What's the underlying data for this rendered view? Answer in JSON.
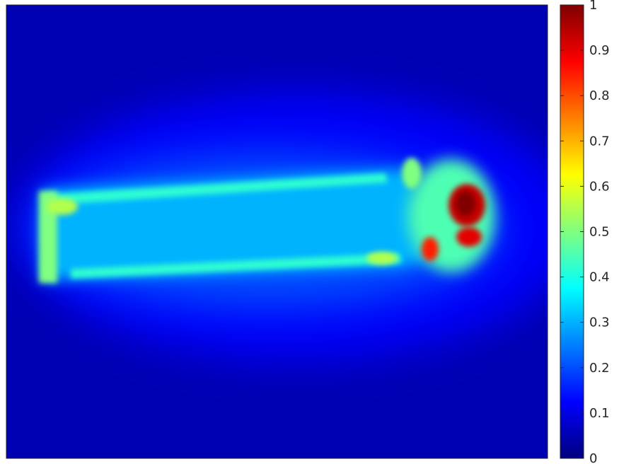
{
  "chart_data": {
    "type": "heatmap",
    "colormap": "jet",
    "colorbar": {
      "range": [
        0,
        1
      ],
      "ticks": [
        0,
        0.1,
        0.2,
        0.3,
        0.4,
        0.5,
        0.6,
        0.7,
        0.8,
        0.9,
        1
      ],
      "tick_labels": [
        "0",
        "0.1",
        "0.2",
        "0.3",
        "0.4",
        "0.5",
        "0.6",
        "0.7",
        "0.8",
        "0.9",
        "1"
      ],
      "placement": "right"
    },
    "background_value": 0.05,
    "regions": [
      {
        "name": "outer-glow",
        "value": 0.12
      },
      {
        "name": "inner-glow",
        "value": 0.2
      },
      {
        "name": "bar-body",
        "value": 0.3
      },
      {
        "name": "bar-top-edge",
        "value": 0.42
      },
      {
        "name": "bar-bottom-edge",
        "value": 0.42
      },
      {
        "name": "bar-left-end",
        "value": 0.5
      },
      {
        "name": "hotspot-upper-left",
        "value": 0.55
      },
      {
        "name": "hotspot-lower-right",
        "value": 0.55
      },
      {
        "name": "head-ring",
        "value": 0.45
      },
      {
        "name": "head-patch",
        "value": 0.5
      },
      {
        "name": "head-spot-small",
        "value": 0.85
      },
      {
        "name": "head-core",
        "value": 0.93
      },
      {
        "name": "head-lower",
        "value": 0.9
      },
      {
        "name": "head-peak",
        "value": 1.0
      }
    ],
    "grid": false,
    "axes_ticks_visible": false
  }
}
